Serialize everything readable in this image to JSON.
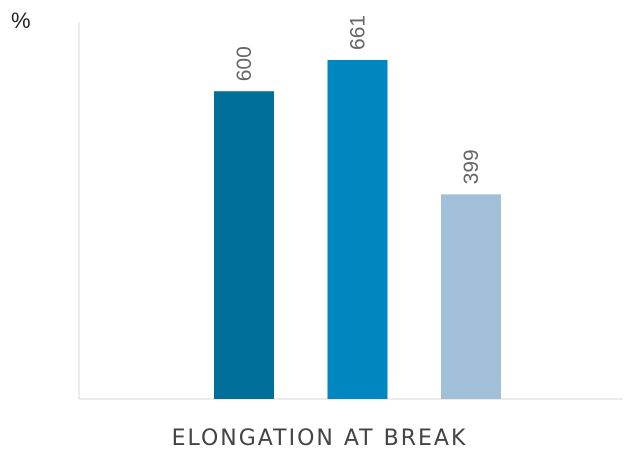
{
  "chart_data": {
    "type": "bar",
    "title": "",
    "ylabel": "%",
    "xlabel": "ELONGATION AT BREAK",
    "ylim": [
      0,
      735
    ],
    "grid": false,
    "legend": "none",
    "categories": [
      "ELONGATION AT BREAK"
    ],
    "series": [
      {
        "values": [
          600
        ],
        "data_label": "600",
        "color": "#006f9a"
      },
      {
        "values": [
          661
        ],
        "data_label": "661",
        "color": "#0087bf"
      },
      {
        "values": [
          399
        ],
        "data_label": "399",
        "color": "#a2bfda"
      }
    ]
  }
}
